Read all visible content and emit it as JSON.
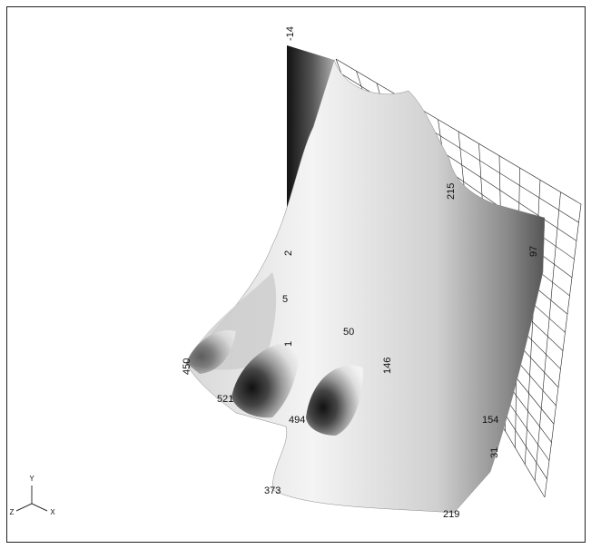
{
  "contour_labels": [
    "-14",
    "215",
    "97",
    "2",
    "5",
    "50",
    "1",
    "146",
    "450",
    "521",
    "494",
    "154",
    "373",
    "219",
    "31"
  ],
  "axes": {
    "y": "Y",
    "z": "Z",
    "x": "X"
  }
}
